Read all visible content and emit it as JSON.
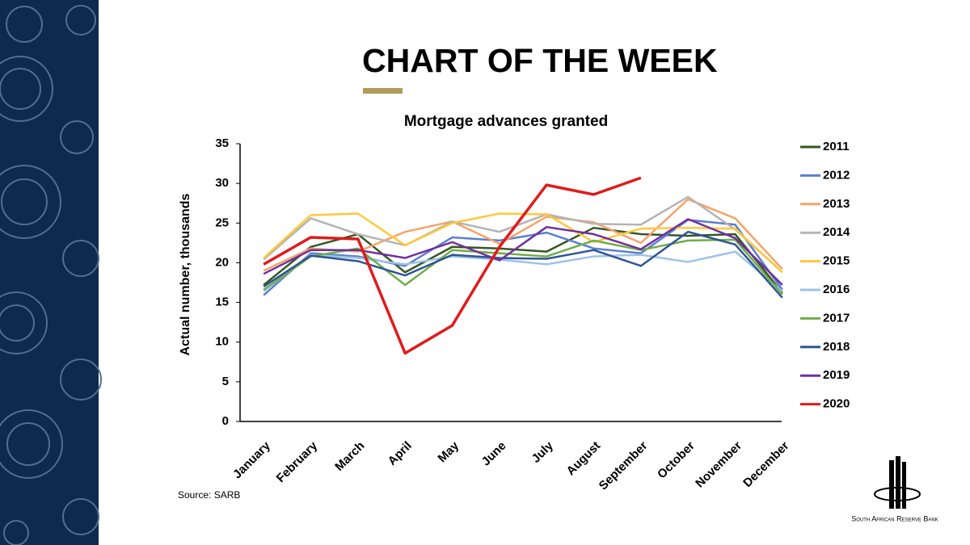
{
  "header": {
    "title": "CHART OF THE WEEK"
  },
  "chart_data": {
    "type": "line",
    "title": "Mortgage advances granted",
    "y_label": "Actual number, thousands",
    "categories": [
      "January",
      "February",
      "March",
      "April",
      "May",
      "June",
      "July",
      "August",
      "September",
      "October",
      "November",
      "December"
    ],
    "ylim": [
      0,
      35
    ],
    "yticks": [
      0,
      5,
      10,
      15,
      20,
      25,
      30,
      35
    ],
    "grid": false,
    "legend": "right",
    "series": [
      {
        "name": "2011",
        "color": "#375623",
        "values": [
          17.2,
          22.0,
          23.6,
          18.8,
          22.0,
          21.8,
          21.4,
          24.4,
          23.6,
          23.4,
          23.6,
          16.2
        ]
      },
      {
        "name": "2012",
        "color": "#5b7fd0",
        "values": [
          15.9,
          21.2,
          20.8,
          19.6,
          23.2,
          22.8,
          23.8,
          21.8,
          21.2,
          25.4,
          24.8,
          16.6
        ]
      },
      {
        "name": "2013",
        "color": "#f4a36a",
        "values": [
          19.0,
          21.8,
          21.4,
          23.9,
          25.2,
          22.4,
          25.8,
          25.1,
          22.5,
          28.0,
          25.6,
          19.2
        ]
      },
      {
        "name": "2014",
        "color": "#b4b4b4",
        "values": [
          20.4,
          25.6,
          23.6,
          22.2,
          25.2,
          23.9,
          26.1,
          24.9,
          24.8,
          28.3,
          24.2,
          18.8
        ]
      },
      {
        "name": "2015",
        "color": "#ffc83d",
        "values": [
          20.6,
          26.0,
          26.2,
          22.2,
          25.0,
          26.2,
          26.1,
          22.6,
          24.3,
          24.4,
          24.3,
          18.8
        ]
      },
      {
        "name": "2016",
        "color": "#9dc3e6",
        "values": [
          16.4,
          21.0,
          20.6,
          19.8,
          20.8,
          20.4,
          19.8,
          20.8,
          21.0,
          20.1,
          21.4,
          16.4
        ]
      },
      {
        "name": "2017",
        "color": "#70ad47",
        "values": [
          16.6,
          20.8,
          21.8,
          17.2,
          21.6,
          21.2,
          20.8,
          22.8,
          21.6,
          22.8,
          22.9,
          16.0
        ]
      },
      {
        "name": "2018",
        "color": "#2f5597",
        "values": [
          17.0,
          20.9,
          20.2,
          18.4,
          21.0,
          20.6,
          20.5,
          21.6,
          19.6,
          23.9,
          22.3,
          15.6
        ]
      },
      {
        "name": "2019",
        "color": "#7030a0",
        "values": [
          18.6,
          21.6,
          21.6,
          20.6,
          22.6,
          20.3,
          24.5,
          23.6,
          21.7,
          25.5,
          23.1,
          17.2
        ]
      },
      {
        "name": "2020",
        "color": "#e01b1b",
        "values": [
          19.8,
          23.2,
          23.0,
          8.6,
          12.1,
          22.0,
          29.8,
          28.6,
          30.7,
          null,
          null,
          null
        ]
      }
    ]
  },
  "footer": {
    "source": "Source: SARB",
    "logo": "South African Reserve Bank"
  }
}
